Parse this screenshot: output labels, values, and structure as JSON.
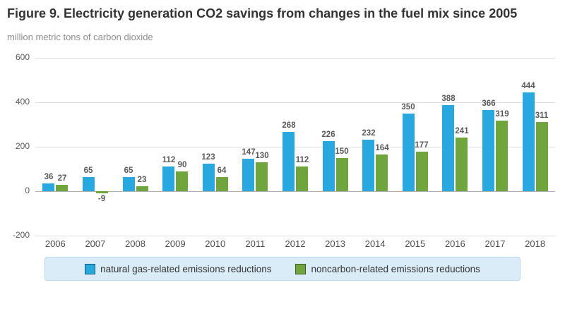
{
  "figure": {
    "title": "Figure 9. Electricity generation CO2 savings from changes in the fuel mix since 2005",
    "unit_label": "million metric tons of carbon dioxide"
  },
  "colors": {
    "blue": "#29a8df",
    "green": "#6fa53c",
    "legend_bg": "#d9ecf7",
    "legend_border": "#bcd8ea",
    "grid": "#dcdcdc",
    "zero_line": "#b0b0b0",
    "label_gray": "#595959"
  },
  "chart_data": {
    "type": "bar",
    "title": "Figure 9. Electricity generation CO2 savings from changes in the fuel mix since 2005",
    "ylabel": "million metric tons of carbon dioxide",
    "categories": [
      "2006",
      "2007",
      "2008",
      "2009",
      "2010",
      "2011",
      "2012",
      "2013",
      "2014",
      "2015",
      "2016",
      "2017",
      "2018"
    ],
    "series": [
      {
        "name": "natural gas-related emissions reductions",
        "color_key": "blue",
        "values": [
          36,
          65,
          65,
          112,
          123,
          147,
          268,
          226,
          232,
          350,
          388,
          366,
          444
        ]
      },
      {
        "name": "noncarbon-related emissions reductions",
        "color_key": "green",
        "values": [
          27,
          -9,
          23,
          90,
          64,
          130,
          112,
          150,
          164,
          177,
          241,
          319,
          311
        ]
      }
    ],
    "ylim": [
      -200,
      600
    ],
    "yticks": [
      600,
      400,
      200,
      0,
      -200
    ],
    "grid": true,
    "legend_position": "bottom"
  }
}
